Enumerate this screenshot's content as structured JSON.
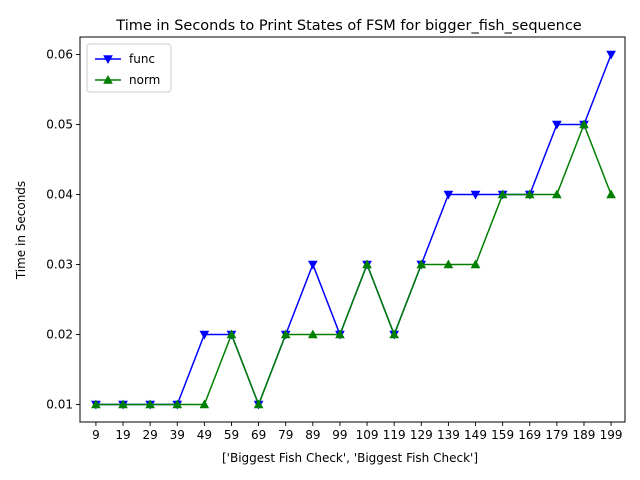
{
  "chart_data": {
    "type": "line",
    "title": "Time in Seconds to Print States of FSM for bigger_fish_sequence",
    "xlabel": "['Biggest Fish Check', 'Biggest Fish Check']",
    "ylabel": "Time in Seconds",
    "x": [
      9,
      19,
      29,
      39,
      49,
      59,
      69,
      79,
      89,
      99,
      109,
      119,
      129,
      139,
      149,
      159,
      169,
      179,
      189,
      199
    ],
    "x_tick_labels": [
      "9",
      "19",
      "29",
      "39",
      "49",
      "59",
      "69",
      "79",
      "89",
      "99",
      "109",
      "119",
      "129",
      "139",
      "149",
      "159",
      "169",
      "179",
      "189",
      "199"
    ],
    "y_ticks": [
      0.01,
      0.02,
      0.03,
      0.04,
      0.05,
      0.06
    ],
    "y_tick_labels": [
      "0.01",
      "0.02",
      "0.03",
      "0.04",
      "0.05",
      "0.06"
    ],
    "ylim": [
      0.0075,
      0.0625
    ],
    "legend_position": "top-left",
    "grid": false,
    "series": [
      {
        "name": "func",
        "color": "#0000ff",
        "marker": "triangle-down",
        "values": [
          0.01,
          0.01,
          0.01,
          0.01,
          0.02,
          0.02,
          0.01,
          0.02,
          0.03,
          0.02,
          0.03,
          0.02,
          0.03,
          0.04,
          0.04,
          0.04,
          0.04,
          0.05,
          0.05,
          0.06
        ]
      },
      {
        "name": "norm",
        "color": "#008000",
        "marker": "triangle-up",
        "values": [
          0.01,
          0.01,
          0.01,
          0.01,
          0.01,
          0.02,
          0.01,
          0.02,
          0.02,
          0.02,
          0.03,
          0.02,
          0.03,
          0.03,
          0.03,
          0.04,
          0.04,
          0.04,
          0.05,
          0.04
        ]
      }
    ]
  }
}
